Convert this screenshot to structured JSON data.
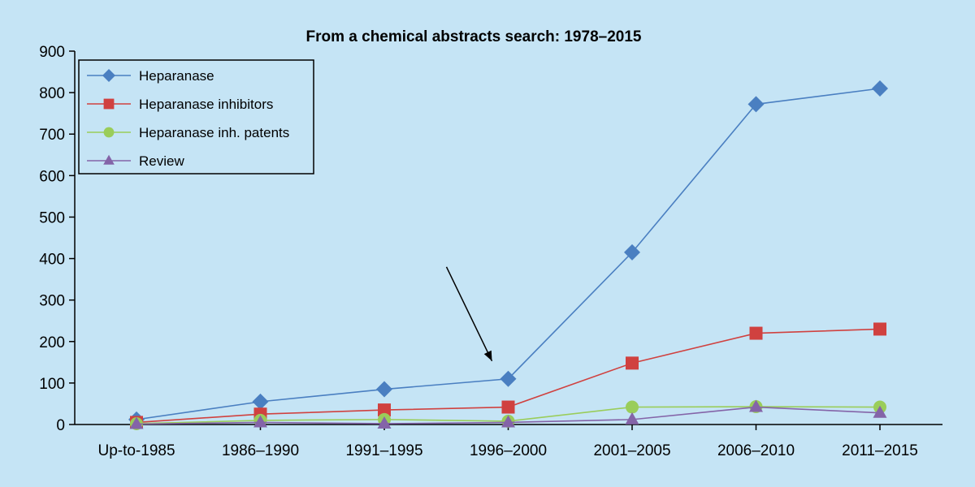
{
  "chart_data": {
    "type": "line",
    "title": "From a chemical abstracts search: 1978–2015",
    "xlabel": "",
    "ylabel": "",
    "categories": [
      "Up-to-1985",
      "1986–1990",
      "1991–1995",
      "1996–2000",
      "2001–2005",
      "2006–2010",
      "2011–2015"
    ],
    "ylim": [
      0,
      900
    ],
    "yticks": [
      0,
      100,
      200,
      300,
      400,
      500,
      600,
      700,
      800,
      900
    ],
    "grid": false,
    "legend_position": "top-left",
    "series": [
      {
        "name": "Heparanase",
        "marker": "diamond",
        "color": "#4a7fc1",
        "values": [
          12,
          55,
          85,
          110,
          415,
          772,
          810
        ]
      },
      {
        "name": "Heparanase inhibitors",
        "marker": "square",
        "color": "#d0413f",
        "values": [
          5,
          25,
          35,
          42,
          148,
          220,
          230
        ]
      },
      {
        "name": "Heparanase inh. patents",
        "marker": "circle",
        "color": "#9acd5a",
        "values": [
          2,
          10,
          12,
          8,
          42,
          43,
          42
        ]
      },
      {
        "name": "Review",
        "marker": "triangle",
        "color": "#8464a8",
        "values": [
          1,
          5,
          2,
          5,
          12,
          42,
          28
        ]
      }
    ],
    "annotations": [
      {
        "type": "arrow",
        "category": "1996–2000",
        "points_to_value": 110
      }
    ]
  }
}
